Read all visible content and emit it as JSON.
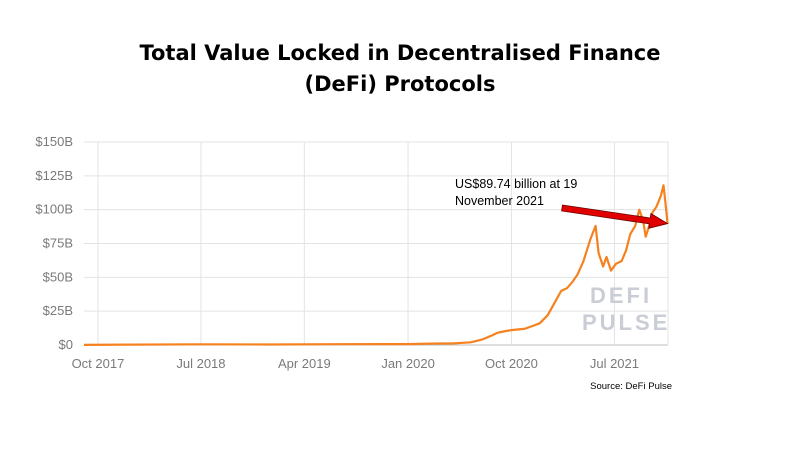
{
  "chart_data": {
    "type": "line",
    "title_lines": [
      "Total Value Locked in Decentralised Finance",
      "(DeFi) Protocols"
    ],
    "y_ticks": [
      {
        "value": 0,
        "label": "$0"
      },
      {
        "value": 25,
        "label": "$25B"
      },
      {
        "value": 50,
        "label": "$50B"
      },
      {
        "value": 75,
        "label": "$75B"
      },
      {
        "value": 100,
        "label": "$100B"
      },
      {
        "value": 125,
        "label": "$125B"
      },
      {
        "value": 150,
        "label": "$150B"
      }
    ],
    "x_ticks": [
      {
        "value": "2017-10-01",
        "label": "Oct 2017"
      },
      {
        "value": "2018-07-01",
        "label": "Jul 2018"
      },
      {
        "value": "2019-04-01",
        "label": "Apr 2019"
      },
      {
        "value": "2020-01-01",
        "label": "Jan 2020"
      },
      {
        "value": "2020-10-01",
        "label": "Oct 2020"
      },
      {
        "value": "2021-07-01",
        "label": "Jul 2021"
      }
    ],
    "xlim": [
      "2017-08-25",
      "2021-11-20"
    ],
    "ylim": [
      0,
      150
    ],
    "grid": true,
    "color": "#f5821f",
    "series": [
      {
        "points": [
          [
            "2017-08-25",
            0.1
          ],
          [
            "2018-01-01",
            0.3
          ],
          [
            "2018-07-01",
            0.5
          ],
          [
            "2019-01-01",
            0.4
          ],
          [
            "2019-07-01",
            0.6
          ],
          [
            "2020-01-01",
            0.7
          ],
          [
            "2020-03-01",
            1.0
          ],
          [
            "2020-05-01",
            1.2
          ],
          [
            "2020-06-15",
            2.0
          ],
          [
            "2020-07-15",
            4.0
          ],
          [
            "2020-08-10",
            7.0
          ],
          [
            "2020-08-25",
            9.0
          ],
          [
            "2020-09-10",
            10.0
          ],
          [
            "2020-10-01",
            11.0
          ],
          [
            "2020-10-20",
            11.5
          ],
          [
            "2020-11-05",
            12.0
          ],
          [
            "2020-11-25",
            14.0
          ],
          [
            "2020-12-15",
            16.0
          ],
          [
            "2021-01-05",
            22.0
          ],
          [
            "2021-01-25",
            32.0
          ],
          [
            "2021-02-10",
            40.0
          ],
          [
            "2021-02-25",
            42.0
          ],
          [
            "2021-03-10",
            46.0
          ],
          [
            "2021-03-25",
            52.0
          ],
          [
            "2021-04-10",
            62.0
          ],
          [
            "2021-04-28",
            78.0
          ],
          [
            "2021-05-12",
            88.0
          ],
          [
            "2021-05-20",
            68.0
          ],
          [
            "2021-06-01",
            58.0
          ],
          [
            "2021-06-10",
            65.0
          ],
          [
            "2021-06-22",
            55.0
          ],
          [
            "2021-07-05",
            60.0
          ],
          [
            "2021-07-20",
            62.0
          ],
          [
            "2021-08-01",
            70.0
          ],
          [
            "2021-08-12",
            82.0
          ],
          [
            "2021-08-25",
            88.0
          ],
          [
            "2021-09-05",
            100.0
          ],
          [
            "2021-09-15",
            92.0
          ],
          [
            "2021-09-22",
            80.0
          ],
          [
            "2021-10-01",
            88.0
          ],
          [
            "2021-10-10",
            98.0
          ],
          [
            "2021-10-20",
            102.0
          ],
          [
            "2021-11-01",
            110.0
          ],
          [
            "2021-11-08",
            118.0
          ],
          [
            "2021-11-12",
            108.0
          ],
          [
            "2021-11-19",
            89.74
          ]
        ]
      }
    ],
    "annotation": {
      "lines": [
        "US$89.74 billion at 19",
        "November 2021"
      ],
      "date": "2021-11-19",
      "value": 89.74,
      "arrow_color": "#e00000"
    },
    "watermark": [
      "DEFI",
      "PULSE"
    ],
    "source": "Source: DeFi Pulse"
  }
}
